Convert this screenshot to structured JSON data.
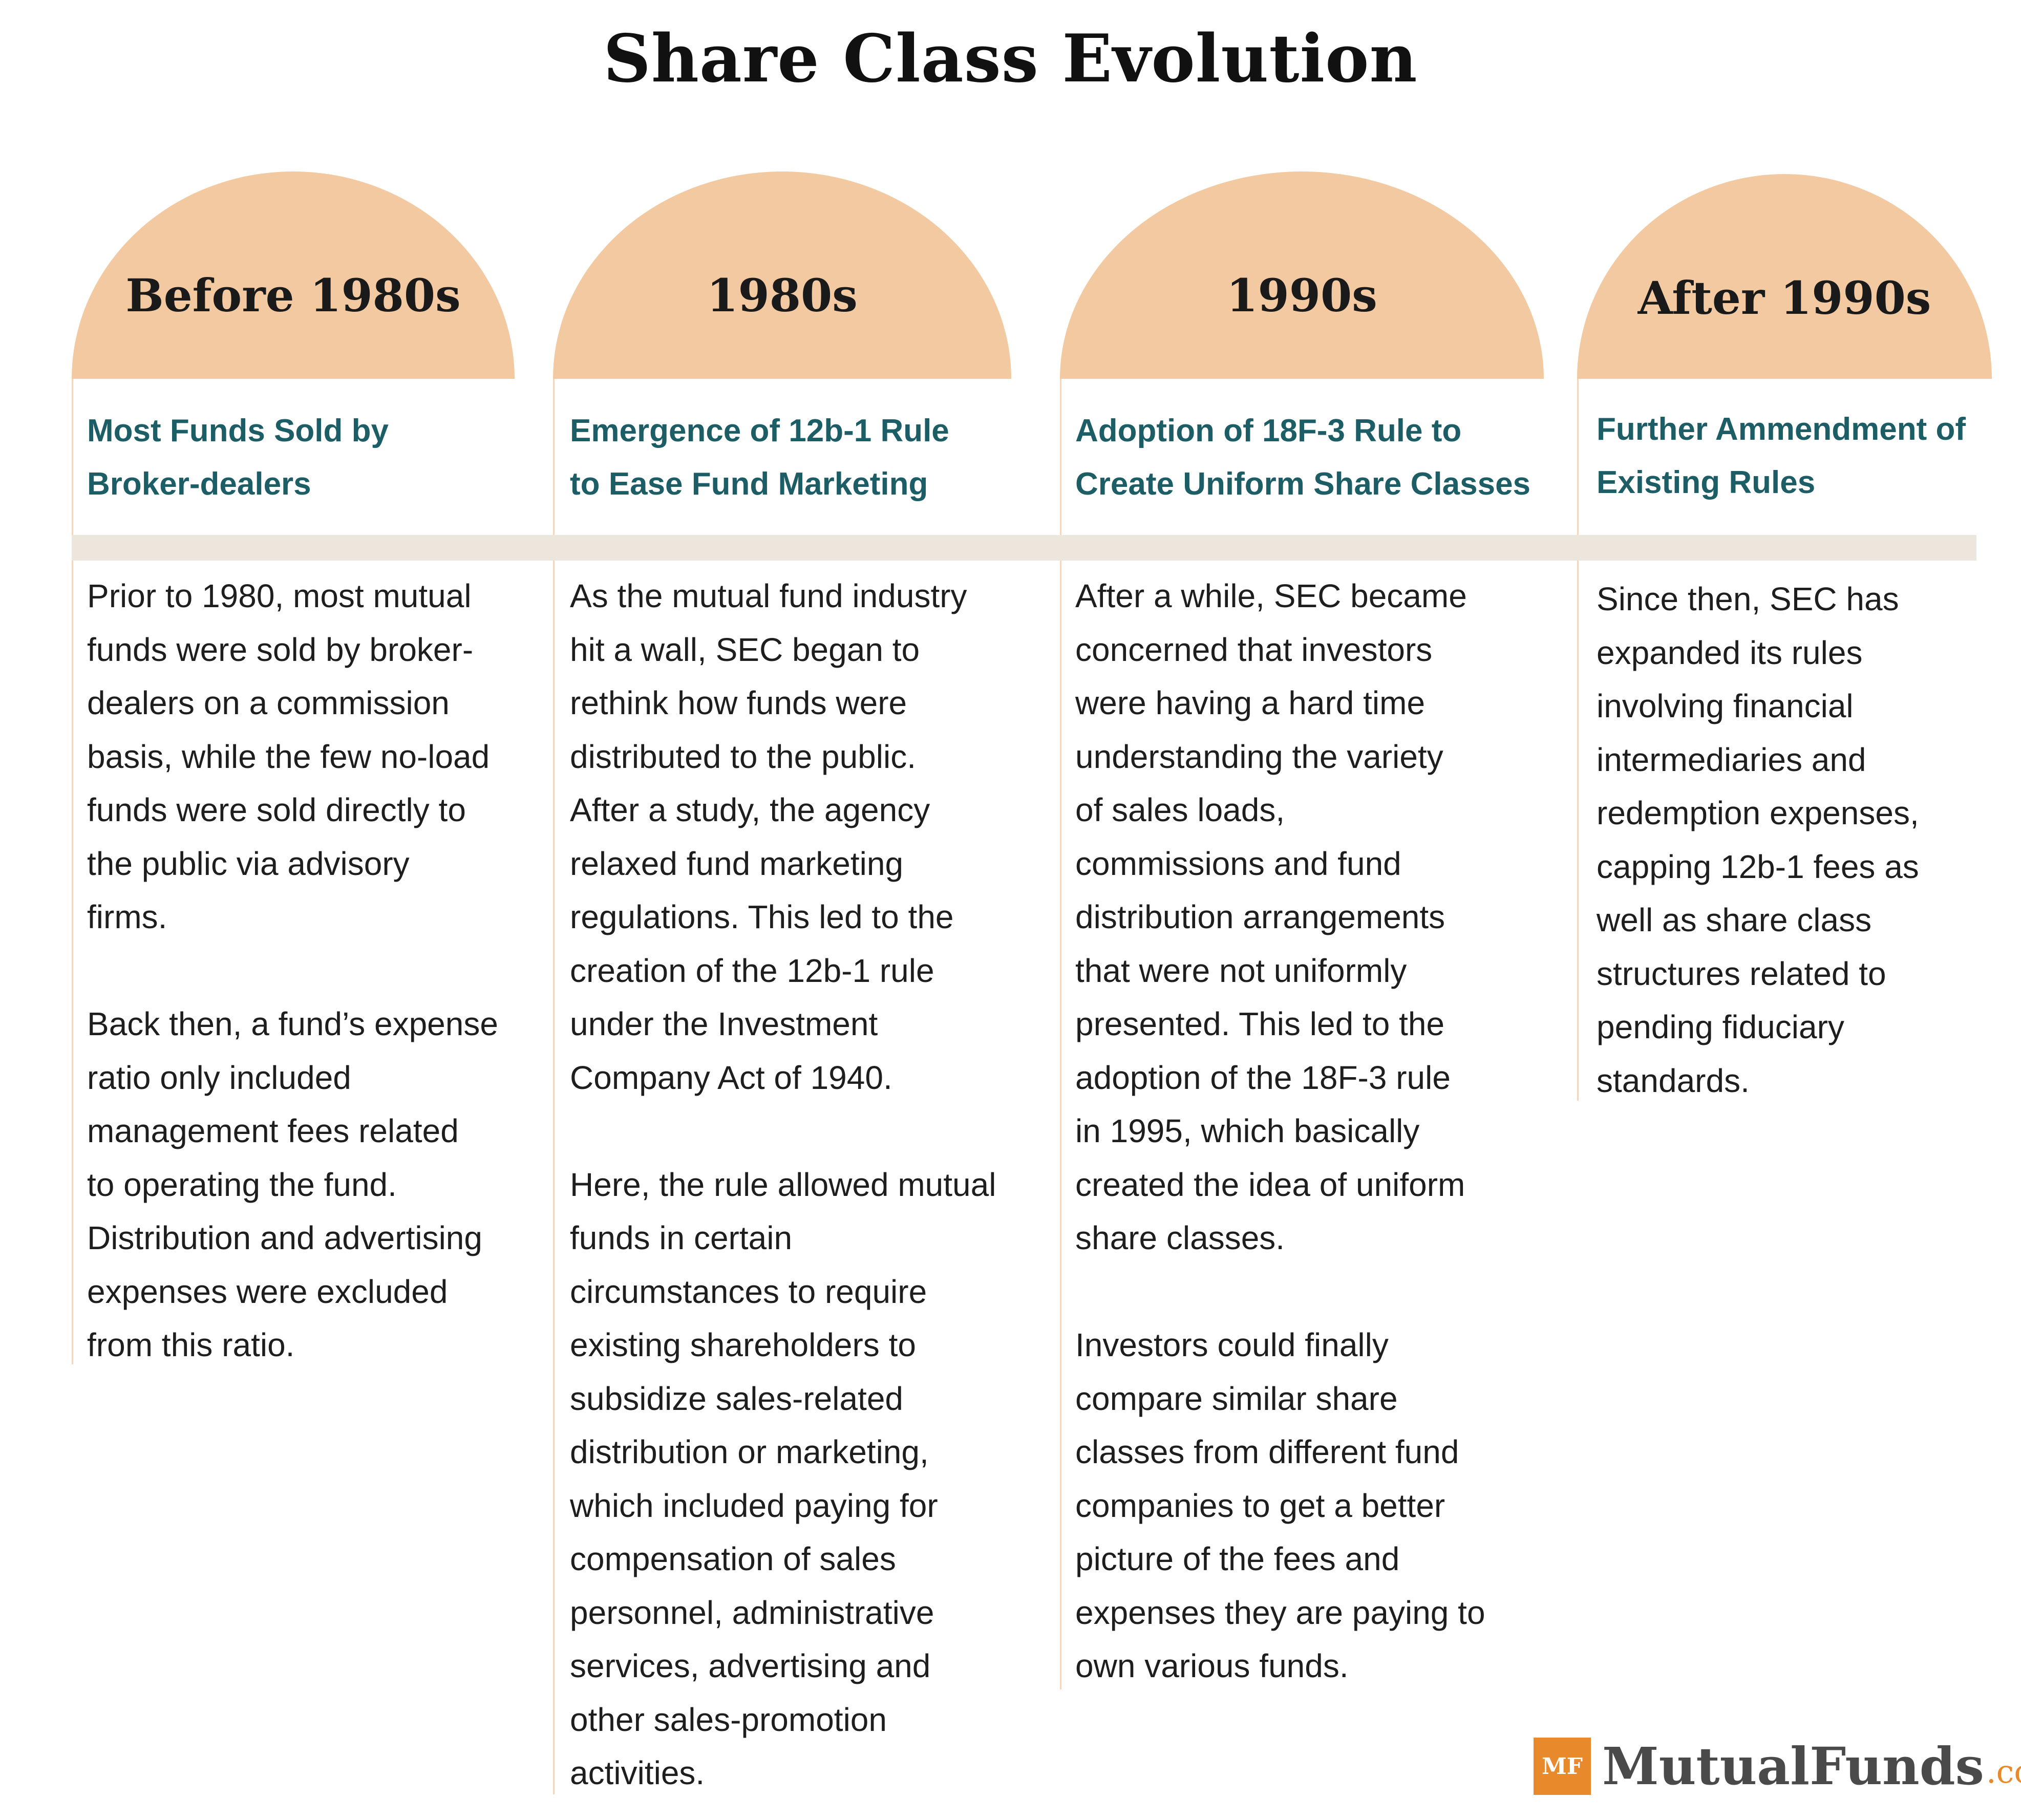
{
  "title": "Share Class Evolution",
  "periods": [
    {
      "label": "Before 1980s",
      "heading": "Most Funds Sold by\nBroker-dealers",
      "body": "Prior to 1980, most mutual\nfunds were sold by broker-\ndealers on a commission\nbasis, while the few no-load\nfunds were sold directly to\nthe public via advisory\nfirms.\n\nBack then, a fund’s expense\nratio only included\nmanagement fees related\nto operating the fund.\nDistribution and advertising\nexpenses were excluded\nfrom this ratio."
    },
    {
      "label": "1980s",
      "heading": "Emergence of 12b-1 Rule\nto Ease Fund Marketing",
      "body": "As the mutual fund industry\nhit a wall, SEC began to\nrethink how funds were\ndistributed to the public.\nAfter a study, the agency\nrelaxed fund marketing\nregulations. This led to the\ncreation of the 12b-1 rule\nunder the Investment\nCompany Act of 1940.\n\nHere, the rule allowed mutual\nfunds in certain\ncircumstances to require\nexisting shareholders to\nsubsidize sales-related\ndistribution or marketing,\nwhich included paying for\ncompensation of sales\npersonnel, administrative\nservices, advertising and\nother sales-promotion\nactivities."
    },
    {
      "label": "1990s",
      "heading": "Adoption of 18F-3 Rule to\nCreate Uniform Share Classes",
      "body": "After a while, SEC became\nconcerned that investors\nwere having a hard time\nunderstanding the variety\nof sales loads,\ncommissions and fund\ndistribution arrangements\nthat were not uniformly\npresented. This led to the\nadoption of the 18F-3 rule\nin 1995, which basically\ncreated the idea of uniform\nshare classes.\n\nInvestors could finally\ncompare similar share\nclasses from different fund\ncompanies to get a better\npicture of the fees and\nexpenses they are paying to\nown various funds."
    },
    {
      "label": "After 1990s",
      "heading": "Further Ammendment of\nExisting Rules",
      "body": "Since then, SEC has\nexpanded its rules\ninvolving financial\nintermediaries and\nredemption expenses,\ncapping 12b-1 fees as\nwell as share class\nstructures related to\npending fiduciary\nstandards."
    }
  ],
  "logo": {
    "mark": "MF",
    "name": "MutualFunds",
    "tld": ".com"
  },
  "colors": {
    "arch": "#f2c9a0",
    "heading": "#1d5e66",
    "band": "#ece6dc",
    "logo_accent": "#e8892b"
  }
}
